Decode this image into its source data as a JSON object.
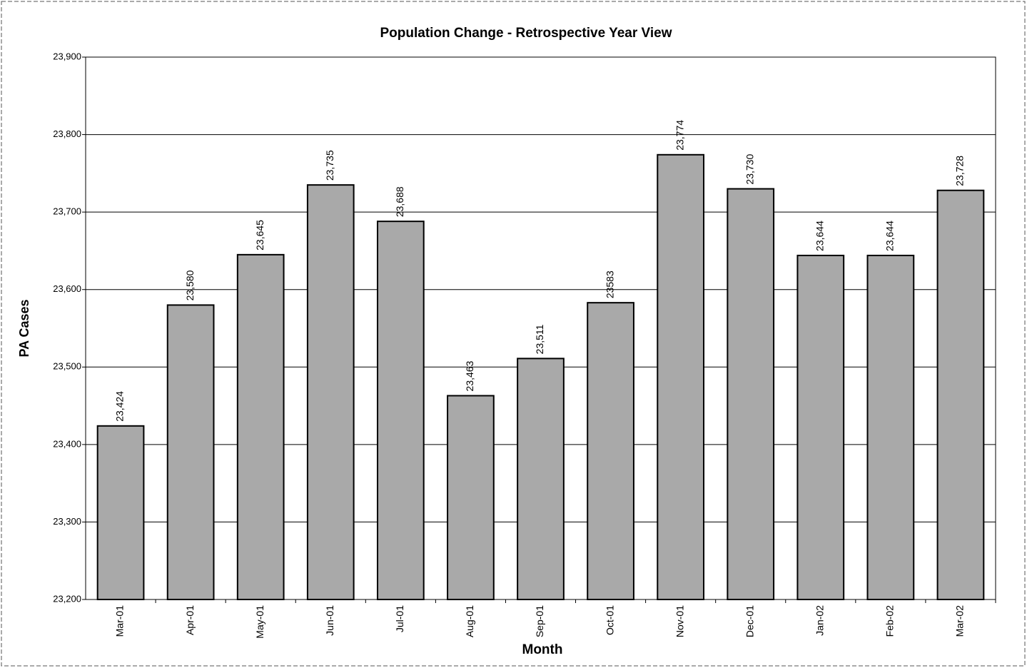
{
  "chart_data": {
    "type": "bar",
    "title": "Population Change - Retrospective Year View",
    "x_label": "Month",
    "y_label": "PA Cases",
    "categories": [
      "Mar-01",
      "Apr-01",
      "May-01",
      "Jun-01",
      "Jul-01",
      "Aug-01",
      "Sep-01",
      "Oct-01",
      "Nov-01",
      "Dec-01",
      "Jan-02",
      "Feb-02",
      "Mar-02"
    ],
    "values": [
      23424,
      23580,
      23645,
      23735,
      23688,
      23463,
      23511,
      23583,
      23774,
      23730,
      23644,
      23644,
      23728
    ],
    "value_labels": [
      "23,424",
      "23,580",
      "23,645",
      "23,735",
      "23,688",
      "23,463",
      "23,511",
      "23583",
      "23,774",
      "23,730",
      "23,644",
      "23,644",
      "23,728"
    ],
    "color": "#a9a9a9",
    "ylim": [
      23200,
      23900
    ],
    "yticks": [
      {
        "value": 23200,
        "label": "23,200"
      },
      {
        "value": 23300,
        "label": "23,300"
      },
      {
        "value": 23400,
        "label": "23,400"
      },
      {
        "value": 23500,
        "label": "23,500"
      },
      {
        "value": 23600,
        "label": "23,600"
      },
      {
        "value": 23700,
        "label": "23,700"
      },
      {
        "value": 23800,
        "label": "23,800"
      },
      {
        "value": 23900,
        "label": "23,900"
      }
    ],
    "grid": true
  }
}
